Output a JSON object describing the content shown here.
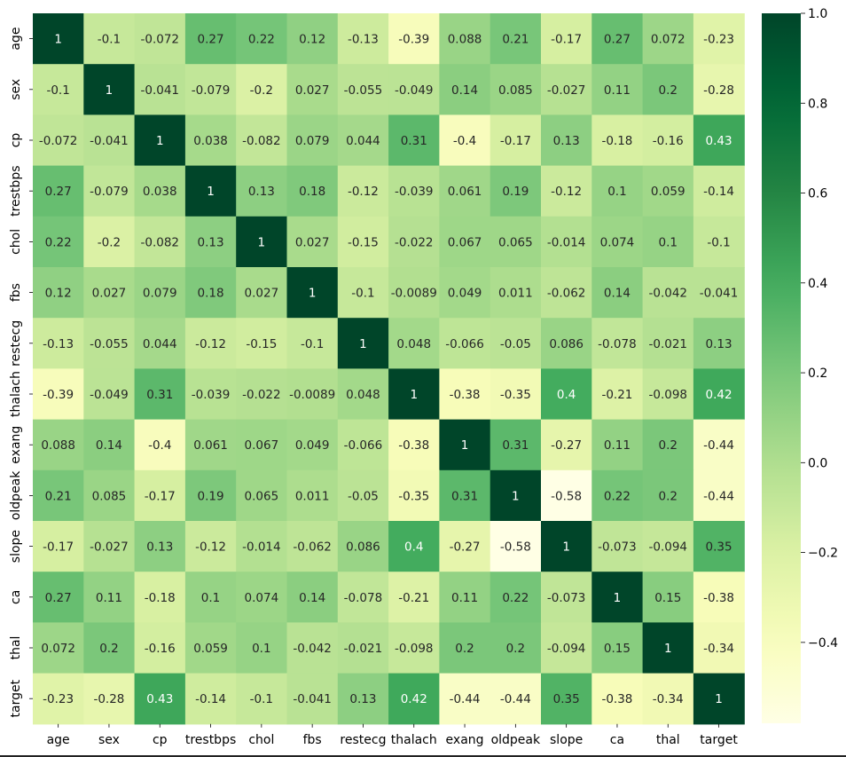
{
  "chart_data": {
    "type": "heatmap",
    "title": "",
    "xlabel": "",
    "ylabel": "",
    "x_labels": [
      "age",
      "sex",
      "cp",
      "trestbps",
      "chol",
      "fbs",
      "restecg",
      "thalach",
      "exang",
      "oldpeak",
      "slope",
      "ca",
      "thal",
      "target"
    ],
    "y_labels": [
      "age",
      "sex",
      "cp",
      "trestbps",
      "chol",
      "fbs",
      "restecg",
      "thalach",
      "exang",
      "oldpeak",
      "slope",
      "ca",
      "thal",
      "target"
    ],
    "values": [
      [
        1,
        -0.1,
        -0.072,
        0.27,
        0.22,
        0.12,
        -0.13,
        -0.39,
        0.088,
        0.21,
        -0.17,
        0.27,
        0.072,
        -0.23
      ],
      [
        -0.1,
        1,
        -0.041,
        -0.079,
        -0.2,
        0.027,
        -0.055,
        -0.049,
        0.14,
        0.085,
        -0.027,
        0.11,
        0.2,
        -0.28
      ],
      [
        -0.072,
        -0.041,
        1,
        0.038,
        -0.082,
        0.079,
        0.044,
        0.31,
        -0.4,
        -0.17,
        0.13,
        -0.18,
        -0.16,
        0.43
      ],
      [
        0.27,
        -0.079,
        0.038,
        1,
        0.13,
        0.18,
        -0.12,
        -0.039,
        0.061,
        0.19,
        -0.12,
        0.1,
        0.059,
        -0.14
      ],
      [
        0.22,
        -0.2,
        -0.082,
        0.13,
        1,
        0.027,
        -0.15,
        -0.022,
        0.067,
        0.065,
        -0.014,
        0.074,
        0.1,
        -0.1
      ],
      [
        0.12,
        0.027,
        0.079,
        0.18,
        0.027,
        1,
        -0.1,
        -0.0089,
        0.049,
        0.011,
        -0.062,
        0.14,
        -0.042,
        -0.041
      ],
      [
        -0.13,
        -0.055,
        0.044,
        -0.12,
        -0.15,
        -0.1,
        1,
        0.048,
        -0.066,
        -0.05,
        0.086,
        -0.078,
        -0.021,
        0.13
      ],
      [
        -0.39,
        -0.049,
        0.31,
        -0.039,
        -0.022,
        -0.0089,
        0.048,
        1,
        -0.38,
        -0.35,
        0.4,
        -0.21,
        -0.098,
        0.42
      ],
      [
        0.088,
        0.14,
        -0.4,
        0.061,
        0.067,
        0.049,
        -0.066,
        -0.38,
        1,
        0.31,
        -0.27,
        0.11,
        0.2,
        -0.44
      ],
      [
        0.21,
        0.085,
        -0.17,
        0.19,
        0.065,
        0.011,
        -0.05,
        -0.35,
        0.31,
        1,
        -0.58,
        0.22,
        0.2,
        -0.44
      ],
      [
        -0.17,
        -0.027,
        0.13,
        -0.12,
        -0.014,
        -0.062,
        0.086,
        0.4,
        -0.27,
        -0.58,
        1,
        -0.073,
        -0.094,
        0.35
      ],
      [
        0.27,
        0.11,
        -0.18,
        0.1,
        0.074,
        0.14,
        -0.078,
        -0.21,
        0.11,
        0.22,
        -0.073,
        1,
        0.15,
        -0.38
      ],
      [
        0.072,
        0.2,
        -0.16,
        0.059,
        0.1,
        -0.042,
        -0.021,
        -0.098,
        0.2,
        0.2,
        -0.094,
        0.15,
        1,
        -0.34
      ],
      [
        -0.23,
        -0.28,
        0.43,
        -0.14,
        -0.1,
        -0.041,
        0.13,
        0.42,
        -0.44,
        -0.44,
        0.35,
        -0.38,
        -0.34,
        1
      ]
    ],
    "colorscale": "YlGn",
    "vmin": -0.58,
    "vmax": 1.0,
    "colorbar_ticks": [
      1.0,
      0.8,
      0.6,
      0.4,
      0.2,
      0.0,
      -0.2,
      -0.4
    ],
    "colorbar_tick_labels": [
      "1.0",
      "0.8",
      "0.6",
      "0.4",
      "0.2",
      "0.0",
      "−0.2",
      "−0.4"
    ],
    "annotations": true,
    "grid": false,
    "legend": "right colorbar"
  }
}
